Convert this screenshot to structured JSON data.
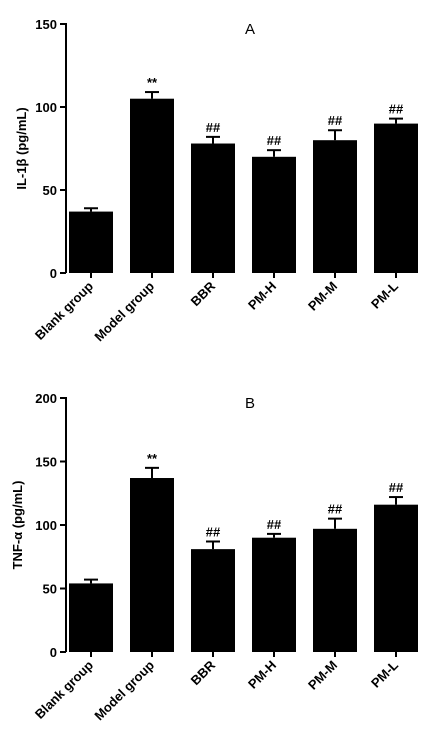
{
  "chart_data": [
    {
      "type": "bar",
      "title": "A",
      "xlabel": "",
      "ylabel": "IL-1β (pg/mL)",
      "ylim": [
        0,
        150
      ],
      "yticks": [
        0,
        50,
        100,
        150
      ],
      "categories": [
        "Blank group",
        "Model group",
        "BBR",
        "PM-H",
        "PM-M",
        "PM-L"
      ],
      "values": [
        37,
        105,
        78,
        70,
        80,
        90
      ],
      "errors": [
        2,
        4,
        4,
        4,
        6,
        3
      ],
      "annotations": [
        "",
        "**",
        "##",
        "##",
        "##",
        "##"
      ],
      "grid": false,
      "bar_color": "#000000"
    },
    {
      "type": "bar",
      "title": "B",
      "xlabel": "",
      "ylabel": "TNF-α (pg/mL)",
      "ylim": [
        0,
        200
      ],
      "yticks": [
        0,
        50,
        100,
        150,
        200
      ],
      "categories": [
        "Blank group",
        "Model group",
        "BBR",
        "PM-H",
        "PM-M",
        "PM-L"
      ],
      "values": [
        54,
        137,
        81,
        90,
        97,
        116
      ],
      "errors": [
        3,
        8,
        6,
        3,
        8,
        6
      ],
      "annotations": [
        "",
        "**",
        "##",
        "##",
        "##",
        "##"
      ],
      "grid": false,
      "bar_color": "#000000"
    }
  ]
}
